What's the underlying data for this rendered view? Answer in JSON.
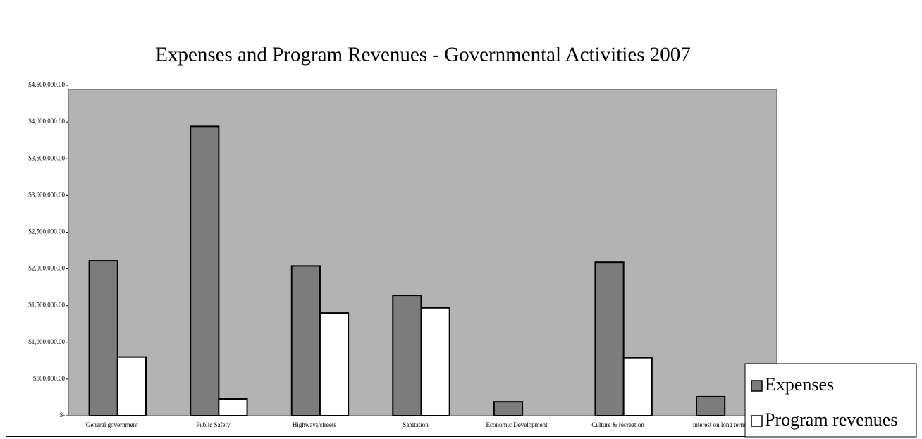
{
  "chart_data": {
    "type": "bar",
    "title": "Expenses and Program Revenues - Governmental Activities 2007",
    "categories": [
      "General government",
      "Public Safety",
      "Highways/streets",
      "Sanitation",
      "Economic Development",
      "Culture & recreation",
      "interest on long term"
    ],
    "series": [
      {
        "name": "Expenses",
        "color": "#7c7c7c",
        "values": [
          2110000,
          3940000,
          2040000,
          1640000,
          190000,
          2090000,
          260000
        ]
      },
      {
        "name": "Program revenues",
        "color": "#ffffff",
        "values": [
          800000,
          230000,
          1400000,
          1470000,
          0,
          790000,
          0
        ]
      }
    ],
    "ylim": [
      0,
      4500000
    ],
    "yticks": [
      {
        "value": 0,
        "label": "$-"
      },
      {
        "value": 500000,
        "label": "$500,000.00"
      },
      {
        "value": 1000000,
        "label": "$1,000,000.00"
      },
      {
        "value": 1500000,
        "label": "$1,500,000.00"
      },
      {
        "value": 2000000,
        "label": "$2,000,000.00"
      },
      {
        "value": 2500000,
        "label": "$2,500,000.00"
      },
      {
        "value": 3000000,
        "label": "$3,000,000.00"
      },
      {
        "value": 3500000,
        "label": "$3,500,000.00"
      },
      {
        "value": 4000000,
        "label": "$4,000,000.00"
      },
      {
        "value": 4500000,
        "label": "$4,500,000.00"
      }
    ],
    "plot_color": "#b3b3b3",
    "legend_position": "lower right"
  }
}
